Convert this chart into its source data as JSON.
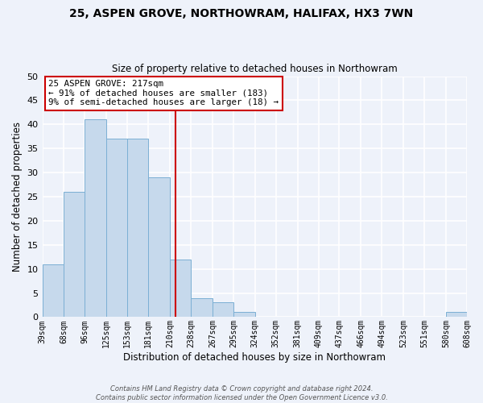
{
  "title": "25, ASPEN GROVE, NORTHOWRAM, HALIFAX, HX3 7WN",
  "subtitle": "Size of property relative to detached houses in Northowram",
  "xlabel": "Distribution of detached houses by size in Northowram",
  "ylabel": "Number of detached properties",
  "bin_edges": [
    39,
    68,
    96,
    125,
    153,
    181,
    210,
    238,
    267,
    295,
    324,
    352,
    381,
    409,
    437,
    466,
    494,
    523,
    551,
    580,
    608
  ],
  "bin_labels": [
    "39sqm",
    "68sqm",
    "96sqm",
    "125sqm",
    "153sqm",
    "181sqm",
    "210sqm",
    "238sqm",
    "267sqm",
    "295sqm",
    "324sqm",
    "352sqm",
    "381sqm",
    "409sqm",
    "437sqm",
    "466sqm",
    "494sqm",
    "523sqm",
    "551sqm",
    "580sqm",
    "608sqm"
  ],
  "counts": [
    11,
    26,
    41,
    37,
    37,
    29,
    12,
    4,
    3,
    1,
    0,
    0,
    0,
    0,
    0,
    0,
    0,
    0,
    0,
    1
  ],
  "bar_color": "#c6d9ec",
  "bar_edge_color": "#7bafd4",
  "marker_value": 217,
  "marker_color": "#cc0000",
  "ylim": [
    0,
    50
  ],
  "yticks": [
    0,
    5,
    10,
    15,
    20,
    25,
    30,
    35,
    40,
    45,
    50
  ],
  "annotation_title": "25 ASPEN GROVE: 217sqm",
  "annotation_line1": "← 91% of detached houses are smaller (183)",
  "annotation_line2": "9% of semi-detached houses are larger (18) →",
  "annotation_box_color": "#ffffff",
  "annotation_box_edge": "#cc0000",
  "footer1": "Contains HM Land Registry data © Crown copyright and database right 2024.",
  "footer2": "Contains public sector information licensed under the Open Government Licence v3.0.",
  "background_color": "#eef2fa"
}
